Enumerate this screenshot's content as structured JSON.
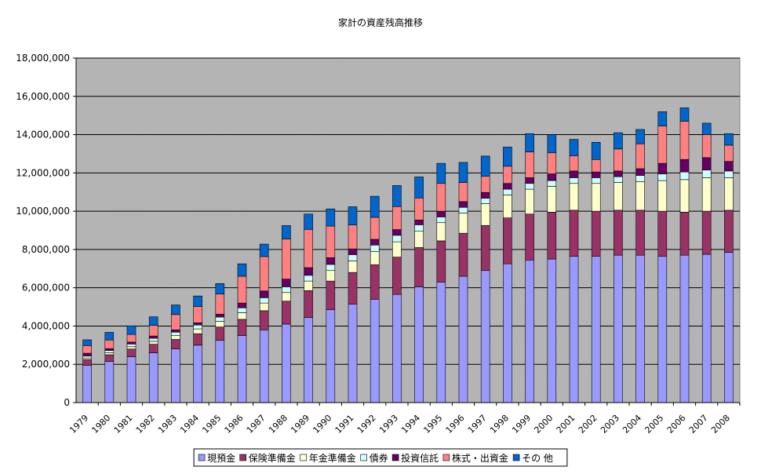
{
  "chart_data": {
    "type": "bar",
    "stacked": true,
    "title": "家計の資産残高推移",
    "xlabel": "",
    "ylabel": "",
    "ylim": [
      0,
      18000000
    ],
    "yticks": [
      0,
      2000000,
      4000000,
      6000000,
      8000000,
      10000000,
      12000000,
      14000000,
      16000000,
      18000000
    ],
    "ytick_labels": [
      "0",
      "2,000,000",
      "4,000,000",
      "6,000,000",
      "8,000,000",
      "10,000,000",
      "12,000,000",
      "14,000,000",
      "16,000,000",
      "18,000,000"
    ],
    "grid": true,
    "legend_position": "bottom",
    "categories": [
      "1979",
      "1980",
      "1981",
      "1982",
      "1983",
      "1984",
      "1985",
      "1986",
      "1987",
      "1988",
      "1989",
      "1990",
      "1991",
      "1992",
      "1993",
      "1994",
      "1995",
      "1996",
      "1997",
      "1998",
      "1999",
      "2000",
      "2001",
      "2002",
      "2003",
      "2004",
      "2005",
      "2006",
      "2007",
      "2008"
    ],
    "series": [
      {
        "name": "現預金",
        "color": "#9999ff",
        "values": [
          1950000,
          2150000,
          2400000,
          2600000,
          2800000,
          3000000,
          3250000,
          3500000,
          3800000,
          4100000,
          4450000,
          4850000,
          5150000,
          5400000,
          5650000,
          6050000,
          6300000,
          6600000,
          6900000,
          7250000,
          7450000,
          7500000,
          7650000,
          7650000,
          7700000,
          7700000,
          7650000,
          7700000,
          7750000,
          7850000
        ]
      },
      {
        "name": "保険準備金",
        "color": "#993366",
        "values": [
          300000,
          350000,
          400000,
          450000,
          500000,
          600000,
          700000,
          850000,
          1000000,
          1200000,
          1400000,
          1500000,
          1650000,
          1800000,
          1950000,
          2050000,
          2150000,
          2250000,
          2350000,
          2400000,
          2400000,
          2450000,
          2400000,
          2350000,
          2350000,
          2350000,
          2350000,
          2250000,
          2250000,
          2200000
        ]
      },
      {
        "name": "年金準備金",
        "color": "#ffffcc",
        "values": [
          80000,
          100000,
          120000,
          150000,
          200000,
          250000,
          300000,
          350000,
          400000,
          450000,
          500000,
          550000,
          600000,
          700000,
          800000,
          850000,
          950000,
          1050000,
          1150000,
          1200000,
          1300000,
          1350000,
          1400000,
          1450000,
          1450000,
          1500000,
          1600000,
          1700000,
          1750000,
          1700000
        ]
      },
      {
        "name": "債券",
        "color": "#ccffff",
        "values": [
          100000,
          120000,
          140000,
          160000,
          180000,
          200000,
          220000,
          250000,
          280000,
          300000,
          300000,
          320000,
          330000,
          330000,
          340000,
          340000,
          300000,
          300000,
          280000,
          300000,
          300000,
          300000,
          300000,
          300000,
          300000,
          320000,
          350000,
          400000,
          400000,
          350000
        ]
      },
      {
        "name": "投資信託",
        "color": "#660066",
        "values": [
          150000,
          100000,
          100000,
          120000,
          120000,
          120000,
          150000,
          250000,
          350000,
          400000,
          400000,
          350000,
          300000,
          300000,
          300000,
          250000,
          300000,
          300000,
          300000,
          300000,
          300000,
          350000,
          350000,
          300000,
          300000,
          350000,
          550000,
          650000,
          650000,
          500000
        ]
      },
      {
        "name": "株式・出資金",
        "color": "#ff8080",
        "values": [
          400000,
          450000,
          400000,
          550000,
          800000,
          850000,
          1050000,
          1400000,
          1800000,
          2100000,
          2000000,
          1650000,
          1250000,
          1150000,
          1200000,
          1150000,
          1450000,
          1000000,
          850000,
          900000,
          1350000,
          1100000,
          800000,
          650000,
          1150000,
          1300000,
          1950000,
          2000000,
          1200000,
          850000
        ]
      },
      {
        "name": "その 他",
        "color": "#0066cc",
        "values": [
          300000,
          400000,
          450000,
          450000,
          500000,
          550000,
          550000,
          650000,
          650000,
          700000,
          800000,
          900000,
          950000,
          1100000,
          1100000,
          1100000,
          1050000,
          1050000,
          1050000,
          1000000,
          950000,
          950000,
          850000,
          900000,
          850000,
          750000,
          750000,
          700000,
          600000,
          600000
        ]
      }
    ]
  }
}
